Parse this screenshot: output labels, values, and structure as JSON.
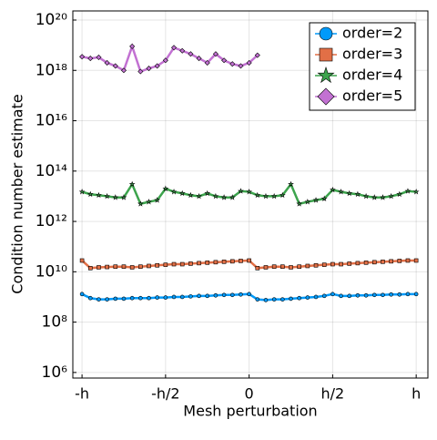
{
  "chart_data": {
    "type": "line",
    "xlabel": "Mesh perturbation",
    "ylabel": "Condition number estimate",
    "yscale": "log",
    "grid": true,
    "legend": "top-right",
    "xlim": [
      -1.055,
      1.07
    ],
    "ylim": [
      600000.0,
      2.3e+20
    ],
    "xticks": [
      {
        "value": -1,
        "label": "-h"
      },
      {
        "value": -0.5,
        "label": "-h/2"
      },
      0,
      {
        "value": 0.5,
        "label": "h/2"
      },
      {
        "value": 1,
        "label": "h"
      }
    ],
    "yticks": [
      {
        "value": 1000000.0,
        "label": "10⁶"
      },
      {
        "value": 100000000.0,
        "label": "10⁸"
      },
      {
        "value": 10000000000.0,
        "label": "10¹⁰"
      },
      {
        "value": 1000000000000.0,
        "label": "10¹²"
      },
      {
        "value": 100000000000000.0,
        "label": "10¹⁴"
      },
      {
        "value": 1e+16,
        "label": "10¹⁶"
      },
      {
        "value": 1e+18,
        "label": "10¹⁸"
      },
      {
        "value": 1e+20,
        "label": "10²⁰"
      }
    ],
    "series": [
      {
        "name": "order=2",
        "color": "#009AFA",
        "marker": "circle",
        "x": [
          -1,
          -0.95,
          -0.9,
          -0.85,
          -0.8,
          -0.75,
          -0.7,
          -0.65,
          -0.6,
          -0.55,
          -0.5,
          -0.45,
          -0.4,
          -0.35,
          -0.3,
          -0.25,
          -0.2,
          -0.15,
          -0.1,
          -0.05,
          0,
          0.05,
          0.1,
          0.15,
          0.2,
          0.25,
          0.3,
          0.35,
          0.4,
          0.45,
          0.5,
          0.55,
          0.6,
          0.65,
          0.7,
          0.75,
          0.8,
          0.85,
          0.9,
          0.95,
          1
        ],
        "values": [
          1300000000.0,
          900000000.0,
          800000000.0,
          800000000.0,
          850000000.0,
          850000000.0,
          900000000.0,
          900000000.0,
          900000000.0,
          950000000.0,
          950000000.0,
          1000000000.0,
          1000000000.0,
          1050000000.0,
          1100000000.0,
          1100000000.0,
          1150000000.0,
          1200000000.0,
          1200000000.0,
          1250000000.0,
          1300000000.0,
          800000000.0,
          750000000.0,
          800000000.0,
          800000000.0,
          850000000.0,
          900000000.0,
          950000000.0,
          1000000000.0,
          1100000000.0,
          1300000000.0,
          1100000000.0,
          1100000000.0,
          1150000000.0,
          1150000000.0,
          1200000000.0,
          1200000000.0,
          1250000000.0,
          1250000000.0,
          1300000000.0,
          1300000000.0
        ]
      },
      {
        "name": "order=3",
        "color": "#E26F46",
        "marker": "square",
        "x": [
          -1,
          -0.95,
          -0.9,
          -0.85,
          -0.8,
          -0.75,
          -0.7,
          -0.65,
          -0.6,
          -0.55,
          -0.5,
          -0.45,
          -0.4,
          -0.35,
          -0.3,
          -0.25,
          -0.2,
          -0.15,
          -0.1,
          -0.05,
          0,
          0.05,
          0.1,
          0.15,
          0.2,
          0.25,
          0.3,
          0.35,
          0.4,
          0.45,
          0.5,
          0.55,
          0.6,
          0.65,
          0.7,
          0.75,
          0.8,
          0.85,
          0.9,
          0.95,
          1
        ],
        "values": [
          28000000000.0,
          14000000000.0,
          15000000000.0,
          15500000000.0,
          16000000000.0,
          16000000000.0,
          15000000000.0,
          16000000000.0,
          17000000000.0,
          18000000000.0,
          19000000000.0,
          20000000000.0,
          20000000000.0,
          21000000000.0,
          22000000000.0,
          23000000000.0,
          24000000000.0,
          25000000000.0,
          26000000000.0,
          27000000000.0,
          28000000000.0,
          14000000000.0,
          15000000000.0,
          16000000000.0,
          16000000000.0,
          15000000000.0,
          16000000000.0,
          17000000000.0,
          18000000000.0,
          19000000000.0,
          20000000000.0,
          20000000000.0,
          21000000000.0,
          22000000000.0,
          23000000000.0,
          24000000000.0,
          25000000000.0,
          26000000000.0,
          27000000000.0,
          28000000000.0,
          28000000000.0
        ]
      },
      {
        "name": "order=4",
        "color": "#3DA44D",
        "marker": "star",
        "x": [
          -1,
          -0.95,
          -0.9,
          -0.85,
          -0.8,
          -0.75,
          -0.7,
          -0.65,
          -0.6,
          -0.55,
          -0.5,
          -0.45,
          -0.4,
          -0.35,
          -0.3,
          -0.25,
          -0.2,
          -0.15,
          -0.1,
          -0.05,
          0,
          0.05,
          0.1,
          0.15,
          0.2,
          0.25,
          0.3,
          0.35,
          0.4,
          0.45,
          0.5,
          0.55,
          0.6,
          0.65,
          0.7,
          0.75,
          0.8,
          0.85,
          0.9,
          0.95,
          1
        ],
        "values": [
          15000000000000.0,
          12000000000000.0,
          11000000000000.0,
          10000000000000.0,
          9000000000000.0,
          9000000000000.0,
          30000000000000.0,
          5000000000000.0,
          6000000000000.0,
          7000000000000.0,
          20000000000000.0,
          15000000000000.0,
          13000000000000.0,
          11000000000000.0,
          10000000000000.0,
          13000000000000.0,
          10000000000000.0,
          9000000000000.0,
          9000000000000.0,
          16000000000000.0,
          15000000000000.0,
          11000000000000.0,
          10000000000000.0,
          10000000000000.0,
          11000000000000.0,
          30000000000000.0,
          5000000000000.0,
          6000000000000.0,
          7000000000000.0,
          8000000000000.0,
          18000000000000.0,
          15000000000000.0,
          13000000000000.0,
          12000000000000.0,
          10000000000000.0,
          9000000000000.0,
          9000000000000.0,
          10000000000000.0,
          12000000000000.0,
          16000000000000.0,
          15000000000000.0
        ]
      },
      {
        "name": "order=5",
        "color": "#C271D2",
        "marker": "diamond",
        "x": [
          -1,
          -0.95,
          -0.9,
          -0.85,
          -0.8,
          -0.75,
          -0.7,
          -0.65,
          -0.6,
          -0.55,
          -0.5,
          -0.45,
          -0.4,
          -0.35,
          -0.3,
          -0.25,
          -0.2,
          -0.15,
          -0.1,
          -0.05,
          0,
          0.05
        ],
        "values": [
          3.5e+18,
          3e+18,
          3.3e+18,
          2e+18,
          1.5e+18,
          1e+18,
          9e+18,
          9e+17,
          1.2e+18,
          1.5e+18,
          2.5e+18,
          8e+18,
          6e+18,
          4.5e+18,
          3e+18,
          2e+18,
          4.5e+18,
          2.5e+18,
          1.8e+18,
          1.5e+18,
          2e+18,
          4e+18
        ]
      }
    ]
  }
}
